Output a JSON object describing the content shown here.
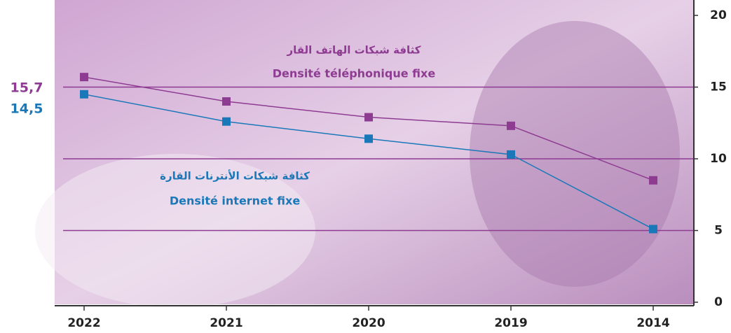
{
  "chart_data": {
    "type": "line",
    "categories": [
      "2022",
      "2021",
      "2020",
      "2019",
      "2014"
    ],
    "series": [
      {
        "name": "Densité téléphonique fixe",
        "name_ar": "كثافة شبكات الهاتف القار",
        "color": "#8e3b92",
        "values": [
          15.7,
          14.0,
          12.9,
          12.3,
          8.5
        ],
        "value_labels": [
          "15,7",
          null,
          null,
          null,
          null
        ]
      },
      {
        "name": "Densité internet fixe",
        "name_ar": "كثافة شبكات الأنترنات القارة",
        "color": "#1b78b8",
        "values": [
          14.5,
          12.6,
          11.4,
          10.3,
          5.1
        ],
        "value_labels": [
          "14,5",
          null,
          null,
          null,
          null
        ]
      }
    ],
    "ylim": [
      0,
      20
    ],
    "yticks": [
      0,
      5,
      10,
      15,
      20
    ],
    "grid": true
  }
}
